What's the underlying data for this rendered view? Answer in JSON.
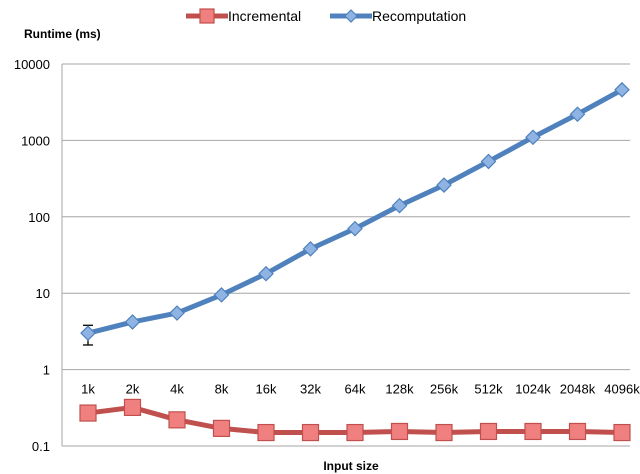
{
  "chart_data": {
    "type": "line",
    "yscale": "log",
    "ylim": [
      0.1,
      10000
    ],
    "yticks": [
      "0.1",
      "1",
      "10",
      "100",
      "1000",
      "10000"
    ],
    "ylabel": "Runtime (ms)",
    "xlabel": "Input size",
    "categories": [
      "1k",
      "2k",
      "4k",
      "8k",
      "16k",
      "32k",
      "64k",
      "128k",
      "256k",
      "512k",
      "1024k",
      "2048k",
      "4096k"
    ],
    "grid": true,
    "legend_position": "top",
    "series": [
      {
        "name": "Incremental",
        "color": "#c0504d",
        "fill": "#f08080",
        "marker": "square",
        "values": [
          0.27,
          0.32,
          0.22,
          0.17,
          0.15,
          0.15,
          0.15,
          0.155,
          0.15,
          0.155,
          0.155,
          0.155,
          0.15
        ]
      },
      {
        "name": "Recomputation",
        "color": "#4f81bd",
        "fill": "#8fb4e3",
        "marker": "diamond",
        "values": [
          3.0,
          4.2,
          5.5,
          9.5,
          18,
          38,
          70,
          140,
          260,
          530,
          1100,
          2200,
          4600
        ],
        "error_bar_index": 0,
        "error_bar_range": [
          2.1,
          3.8
        ]
      }
    ]
  }
}
